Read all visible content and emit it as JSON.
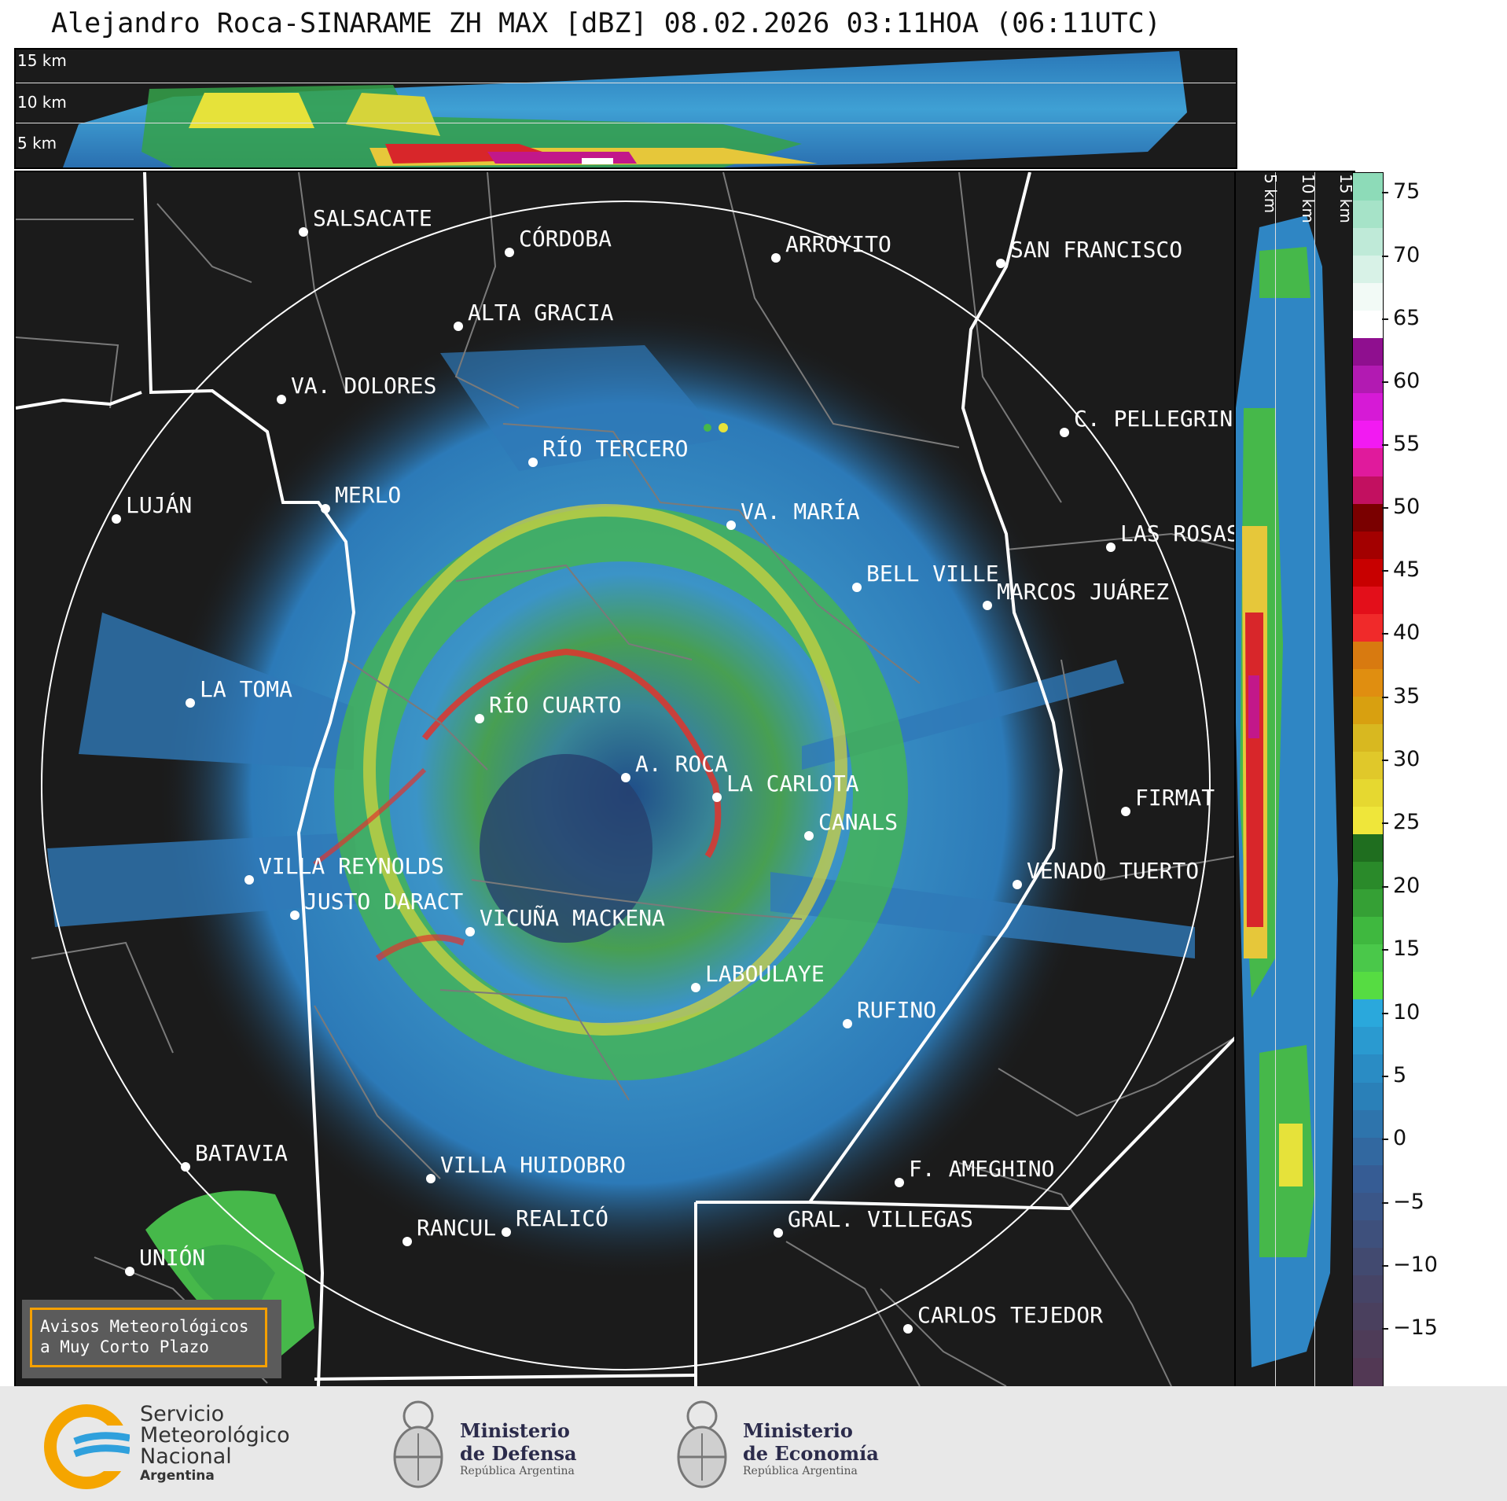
{
  "title": "Alejandro Roca-SINARAME ZH MAX [dBZ] 08.02.2026 03:11HOA (06:11UTC)",
  "top_panel": {
    "km_labels": [
      "15 km",
      "10 km",
      "5 km"
    ]
  },
  "side_panel": {
    "km_labels": [
      "5 km",
      "10 km",
      "15 km"
    ]
  },
  "cities": [
    {
      "name": "SALSACATE"
    },
    {
      "name": "CÓRDOBA"
    },
    {
      "name": "ARROYITO"
    },
    {
      "name": "SAN FRANCISCO"
    },
    {
      "name": "ALTA GRACIA"
    },
    {
      "name": "VA. DOLORES"
    },
    {
      "name": "C. PELLEGRINI"
    },
    {
      "name": "RÍO TERCERO"
    },
    {
      "name": "LUJÁN"
    },
    {
      "name": "MERLO"
    },
    {
      "name": "VA. MARÍA"
    },
    {
      "name": "LAS ROSAS"
    },
    {
      "name": "BELL VILLE"
    },
    {
      "name": "MARCOS JUÁREZ"
    },
    {
      "name": "LA TOMA"
    },
    {
      "name": "RÍO CUARTO"
    },
    {
      "name": "A. ROCA"
    },
    {
      "name": "LA CARLOTA"
    },
    {
      "name": "FIRMAT"
    },
    {
      "name": "CANALS"
    },
    {
      "name": "VILLA REYNOLDS"
    },
    {
      "name": "VENADO TUERTO"
    },
    {
      "name": "JUSTO DARACT"
    },
    {
      "name": "VICUÑA MACKENA"
    },
    {
      "name": "LABOULAYE"
    },
    {
      "name": "RUFINO"
    },
    {
      "name": "BATAVIA"
    },
    {
      "name": "VILLA HUIDOBRO"
    },
    {
      "name": "F. AMEGHINO"
    },
    {
      "name": "RANCUL"
    },
    {
      "name": "REALICÓ"
    },
    {
      "name": "GRAL. VILLEGAS"
    },
    {
      "name": "UNIÓN"
    },
    {
      "name": "CARLOS TEJEDOR"
    }
  ],
  "colorbar": {
    "unit": "dBZ",
    "ticks": [
      "75",
      "70",
      "65",
      "60",
      "55",
      "50",
      "45",
      "40",
      "35",
      "30",
      "25",
      "20",
      "15",
      "10",
      "5",
      "0",
      "−5",
      "−10",
      "−15"
    ]
  },
  "warning": {
    "text": "Avisos Meteorológicos\na Muy Corto Plazo"
  },
  "footer": {
    "smn": {
      "line1": "Servicio",
      "line2": "Meteorológico",
      "line3": "Nacional",
      "line4": "Argentina"
    },
    "defensa": {
      "line1": "Ministerio",
      "line2": "de Defensa",
      "line3": "República Argentina"
    },
    "economia": {
      "line1": "Ministerio",
      "line2": "de Economía",
      "line3": "República Argentina"
    }
  }
}
